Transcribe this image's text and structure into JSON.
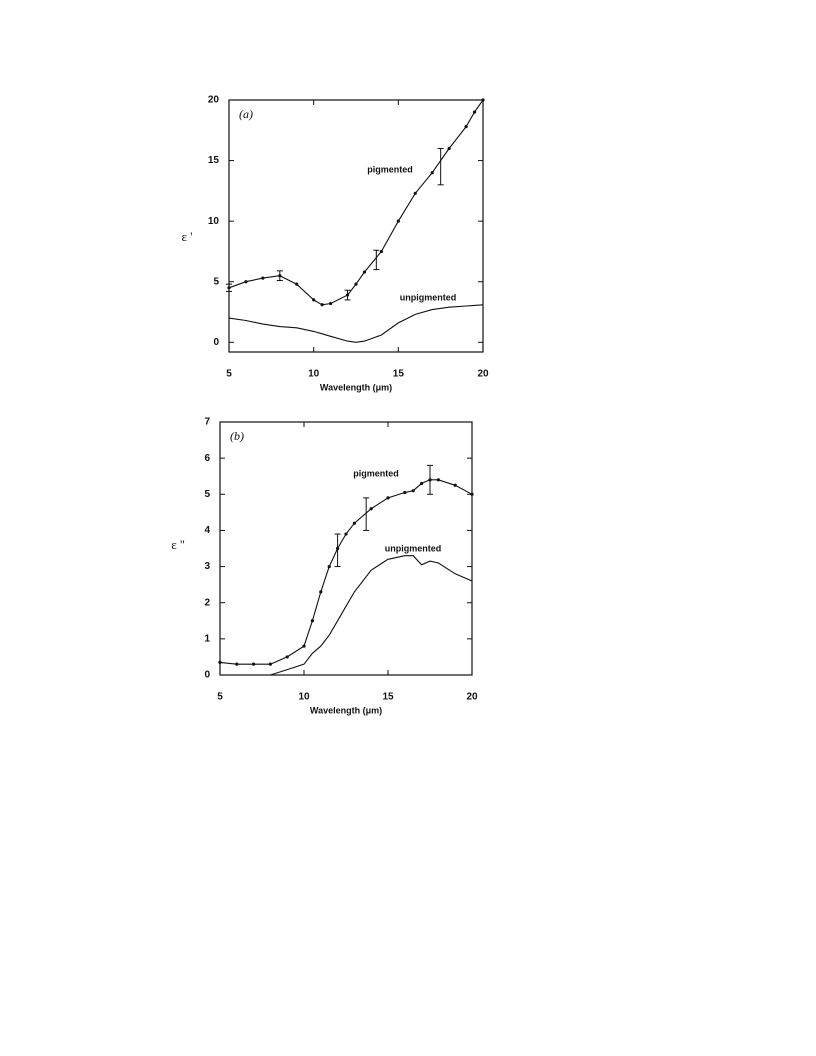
{
  "chart_data": [
    {
      "type": "line",
      "panel_label": "(a)",
      "y_label": "ε '",
      "x_label": "Wavelength (μm)",
      "xlim": [
        5,
        20
      ],
      "ylim": [
        -0.8,
        20
      ],
      "xticks": [
        5,
        10,
        15,
        20
      ],
      "yticks": [
        0,
        5,
        10,
        15,
        20
      ],
      "x": [
        5,
        6,
        7,
        8,
        9,
        10,
        10.5,
        11,
        12,
        12.5,
        13,
        14,
        15,
        16,
        17,
        18,
        19,
        19.5,
        20
      ],
      "series": [
        {
          "name": "pigmented",
          "color": "#111111",
          "markers": true,
          "values": [
            4.5,
            5.0,
            5.3,
            5.5,
            4.8,
            3.5,
            3.1,
            3.2,
            3.9,
            4.8,
            5.8,
            7.5,
            10.0,
            12.3,
            14.0,
            16.0,
            17.8,
            19.0,
            20.0
          ]
        },
        {
          "name": "unpigmented",
          "color": "#111111",
          "markers": false,
          "values": [
            2.0,
            1.8,
            1.5,
            1.3,
            1.2,
            0.9,
            0.7,
            0.5,
            0.1,
            0.0,
            0.1,
            0.6,
            1.6,
            2.3,
            2.7,
            2.9,
            3.0,
            3.05,
            3.1
          ]
        }
      ],
      "error_bars": {
        "x": [
          5,
          8,
          12,
          13.7,
          17.5
        ],
        "values": [
          4.5,
          5.5,
          3.9,
          6.8,
          14.5
        ],
        "errors": [
          0.3,
          0.4,
          0.4,
          0.8,
          1.5
        ]
      }
    },
    {
      "type": "line",
      "panel_label": "(b)",
      "y_label": "ε ''",
      "x_label": "Wavelength (μm)",
      "xlim": [
        5,
        20
      ],
      "ylim": [
        0,
        7
      ],
      "xticks": [
        5,
        10,
        15,
        20
      ],
      "yticks": [
        0,
        1,
        2,
        3,
        4,
        5,
        6,
        7
      ],
      "x": [
        5,
        6,
        7,
        8,
        9,
        10,
        10.5,
        11,
        11.5,
        12,
        12.5,
        13,
        14,
        15,
        16,
        16.5,
        17,
        17.5,
        18,
        19,
        20
      ],
      "series": [
        {
          "name": "pigmented",
          "color": "#111111",
          "markers": true,
          "values": [
            0.35,
            0.3,
            0.3,
            0.3,
            0.5,
            0.8,
            1.5,
            2.3,
            3.0,
            3.5,
            3.9,
            4.2,
            4.6,
            4.9,
            5.05,
            5.1,
            5.3,
            5.4,
            5.4,
            5.25,
            5.0
          ]
        },
        {
          "name": "unpigmented",
          "color": "#111111",
          "markers": false,
          "values": [
            0,
            0,
            0,
            0,
            0.15,
            0.3,
            0.6,
            0.8,
            1.1,
            1.5,
            1.9,
            2.3,
            2.9,
            3.2,
            3.3,
            3.3,
            3.05,
            3.15,
            3.1,
            2.8,
            2.6
          ]
        }
      ],
      "error_bars": {
        "x": [
          12,
          13.7,
          17.5
        ],
        "values": [
          3.45,
          4.45,
          5.4
        ],
        "errors": [
          0.45,
          0.45,
          0.4
        ]
      }
    }
  ]
}
